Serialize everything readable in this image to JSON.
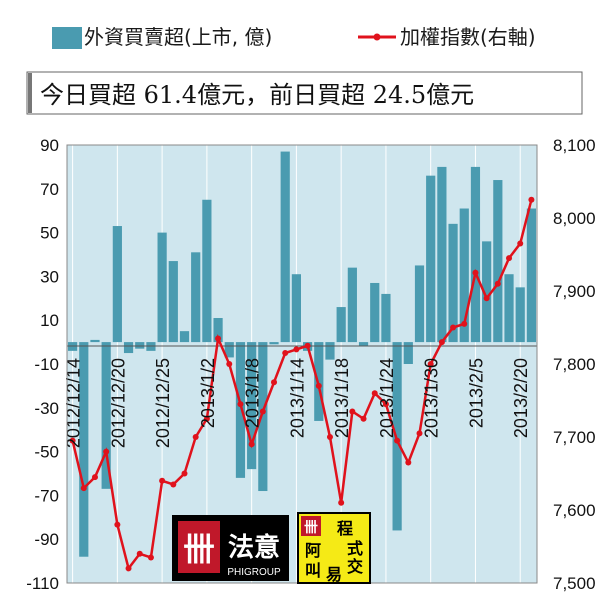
{
  "banner": "今日買超 61.4億元，前日買超 24.5億元",
  "colors": {
    "bar": "#4a9bb0",
    "line": "#e0121c",
    "plot_bg": "#cfe6ee"
  },
  "logos": {
    "logo1_text": "法意",
    "logo1_sub": "PHIGROUP",
    "logo2_chars": [
      "程",
      "阿",
      "式",
      "叫",
      "交",
      "易"
    ]
  },
  "chart_data": {
    "type": "bar+line",
    "legend": [
      "外資買賣超(上市, 億)",
      "加權指數(右軸)"
    ],
    "ylim": [
      -110,
      90
    ],
    "yticks": [
      90,
      70,
      50,
      30,
      10,
      -10,
      -30,
      -50,
      -70,
      -90,
      -110
    ],
    "y2lim": [
      7500,
      8100
    ],
    "y2ticks": [
      "8,100",
      "8,000",
      "7,900",
      "7,800",
      "7,700",
      "7,600",
      "7,500"
    ],
    "x_tick_labels": [
      "2012/12/14",
      "2012/12/20",
      "2012/12/25",
      "2013/1/2",
      "2013/1/8",
      "2013/1/14",
      "2013/1/18",
      "2013/1/24",
      "2013/1/30",
      "2013/2/5",
      "2013/2/20"
    ],
    "x_tick_index": [
      0,
      4,
      8,
      12,
      16,
      20,
      24,
      28,
      32,
      36,
      40
    ],
    "series": [
      {
        "name": "外資買賣超(上市, 億)",
        "type": "bar",
        "values": [
          -4,
          -98,
          1,
          -67,
          53,
          -5,
          -3,
          -4,
          50,
          37,
          5,
          41,
          65,
          11,
          -7,
          -62,
          -58,
          -68,
          -1,
          87,
          31,
          -4,
          -36,
          -8,
          16,
          34,
          -2,
          27,
          22,
          -86,
          -10,
          35,
          76,
          80,
          54,
          61,
          80,
          46,
          74,
          31,
          25,
          61
        ]
      },
      {
        "name": "加權指數(右軸)",
        "type": "line",
        "values": [
          7695,
          7630,
          7645,
          7680,
          7580,
          7520,
          7540,
          7535,
          7640,
          7635,
          7650,
          7700,
          7725,
          7835,
          7800,
          7745,
          7690,
          7735,
          7775,
          7815,
          7820,
          7825,
          7770,
          7700,
          7610,
          7735,
          7725,
          7760,
          7745,
          7695,
          7665,
          7705,
          7800,
          7830,
          7850,
          7855,
          7925,
          7890,
          7910,
          7945,
          7965,
          8025
        ]
      }
    ]
  }
}
